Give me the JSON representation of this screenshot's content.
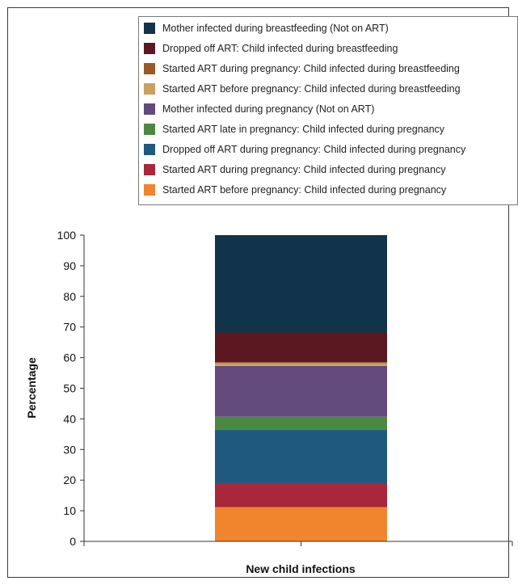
{
  "chart_data": {
    "type": "bar",
    "stacked": true,
    "categories": [
      "New child infections"
    ],
    "xlabel": "New child infections",
    "ylabel": "Percentage",
    "ylim": [
      0,
      100
    ],
    "yticks": [
      0,
      10,
      20,
      30,
      40,
      50,
      60,
      70,
      80,
      90,
      100
    ],
    "legend_position": "top-right",
    "series": [
      {
        "name": "Started ART before pregnancy: Child infected during pregnancy",
        "color": "#f0852d",
        "values": [
          11.2
        ]
      },
      {
        "name": "Started ART during pregnancy: Child infected during pregnancy",
        "color": "#a8273a",
        "values": [
          7.8
        ]
      },
      {
        "name": "Dropped off ART during pregnancy: Child infected during pregnancy",
        "color": "#1f5a7e",
        "values": [
          17.4
        ]
      },
      {
        "name": "Started ART late in pregnancy: Child infected during pregnancy",
        "color": "#4a8a40",
        "values": [
          4.3
        ]
      },
      {
        "name": "Mother infected during pregnancy (Not on ART)",
        "color": "#634a7c",
        "values": [
          16.6
        ]
      },
      {
        "name": "Started ART before pregnancy: Child infected during breastfeeding",
        "color": "#c9a060",
        "values": [
          0.9
        ]
      },
      {
        "name": "Started ART during pregnancy: Child infected during breastfeeding",
        "color": "#9a5a28",
        "values": [
          0.3
        ]
      },
      {
        "name": "Dropped off ART: Child infected during breastfeeding",
        "color": "#5c1820",
        "values": [
          9.7
        ]
      },
      {
        "name": "Mother infected during breastfeeding (Not on ART)",
        "color": "#12344a",
        "values": [
          31.8
        ]
      }
    ]
  }
}
